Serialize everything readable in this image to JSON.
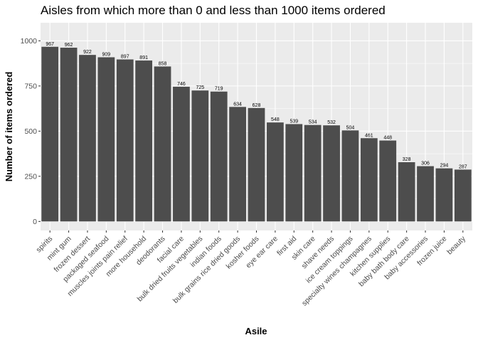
{
  "chart_data": {
    "type": "bar",
    "title": "Aisles from which more than 0 and less than 1000 items ordered",
    "xlabel": "Asile",
    "ylabel": "Number of items ordered",
    "categories": [
      "spirits",
      "mint gum",
      "frozen dessert",
      "packaged seafood",
      "muscles joints pain relief",
      "more household",
      "deodorants",
      "facial care",
      "bulk dried fruits vegetables",
      "indian foods",
      "bulk grains rice dried goods",
      "kosher foods",
      "eye ear care",
      "first aid",
      "skin care",
      "shave needs",
      "ice cream toppings",
      "specialty wines champagnes",
      "kitchen supplies",
      "baby bath body care",
      "baby accessories",
      "frozen juice",
      "beauty"
    ],
    "values": [
      967,
      962,
      922,
      909,
      897,
      891,
      858,
      746,
      725,
      719,
      634,
      628,
      548,
      539,
      534,
      532,
      504,
      461,
      448,
      328,
      306,
      294,
      287
    ],
    "ylim": [
      -50,
      1100
    ],
    "yticks": [
      0,
      250,
      500,
      750,
      1000
    ],
    "grid": true,
    "legend": "none",
    "colors": {
      "panel": "#ebebeb",
      "grid_major": "#ffffff",
      "bar": "#4d4d4d",
      "text": "#000000",
      "axis_text": "#4d4d4d"
    }
  }
}
